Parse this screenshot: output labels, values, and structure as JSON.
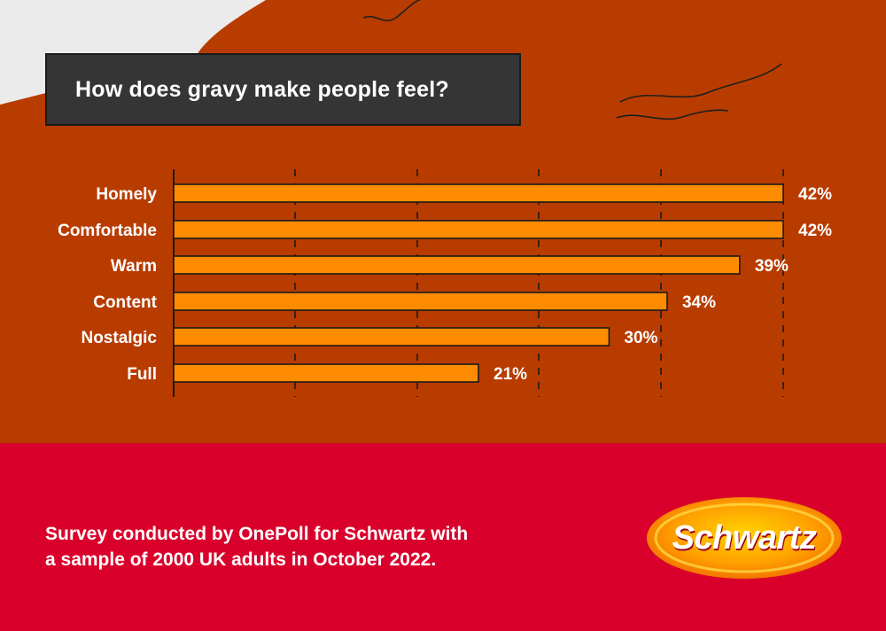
{
  "title": "How does gravy make people feel?",
  "colors": {
    "background_top": "#b83c00",
    "background_bottom": "#d9002b",
    "bar_fill": "#ff8c00",
    "title_box": "#353535",
    "text": "#ffffff"
  },
  "chart_data": {
    "type": "bar",
    "orientation": "horizontal",
    "title": "How does gravy make people feel?",
    "categories": [
      "Homely",
      "Comfortable",
      "Warm",
      "Content",
      "Nostalgic",
      "Full"
    ],
    "values": [
      42,
      42,
      39,
      34,
      30,
      21
    ],
    "value_labels": [
      "42%",
      "42%",
      "39%",
      "34%",
      "30%",
      "21%"
    ],
    "unit": "%",
    "grid": true,
    "legend": "none"
  },
  "footnote": {
    "line1": "Survey conducted by OnePoll for Schwartz with",
    "line2": "a sample of 2000 UK adults in October 2022."
  },
  "logo": {
    "text": "Schwartz",
    "icon": "schwartz-logo"
  }
}
